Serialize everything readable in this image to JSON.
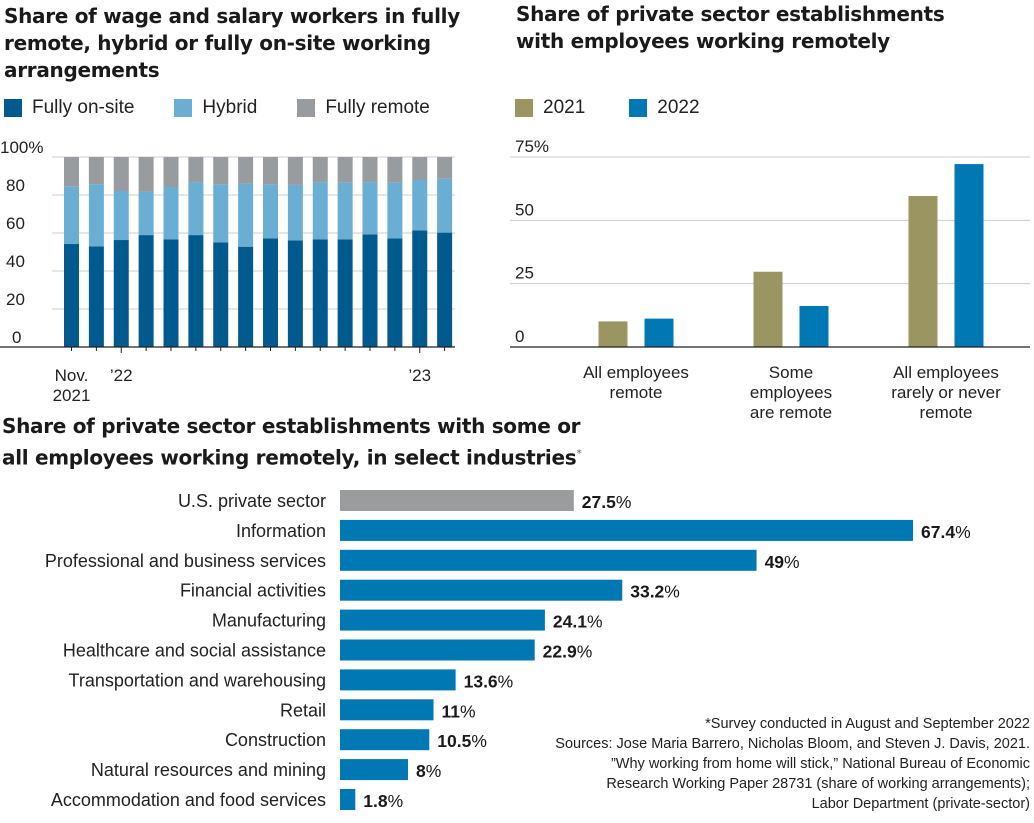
{
  "colors": {
    "onsite": "#005a8e",
    "hybrid": "#6aaed4",
    "remote": "#999c9e",
    "y2021": "#9b9562",
    "y2022": "#0078b4",
    "us_private": "#9a9c9e",
    "industry": "#0078b4",
    "grid": "#cccccc",
    "axis": "#222222"
  },
  "chart_data": [
    {
      "id": "arrangements",
      "type": "bar",
      "stacked": true,
      "title": "Share of wage and salary workers in fully remote, hybrid or fully on-site working arrangements",
      "legend": [
        "Fully on-site",
        "Hybrid",
        "Fully remote"
      ],
      "legend_position": "top-left",
      "ylim": [
        0,
        100
      ],
      "yticks": [
        0,
        20,
        40,
        60,
        80,
        100
      ],
      "ytick_labels": [
        "0",
        "20",
        "40",
        "60",
        "80",
        "100%"
      ],
      "grid": true,
      "x_labels": [
        {
          "index": 0,
          "text": "Nov.\n2021",
          "lines": [
            "Nov.",
            "2021"
          ]
        },
        {
          "index": 2,
          "text": "'22",
          "lines": [
            "’22"
          ]
        },
        {
          "index": 14,
          "text": "'23",
          "lines": [
            "’23"
          ]
        }
      ],
      "categories": [
        "Nov 2021",
        "Dec 2021",
        "Jan 2022",
        "Feb 2022",
        "Mar 2022",
        "Apr 2022",
        "May 2022",
        "Jun 2022",
        "Jul 2022",
        "Aug 2022",
        "Sep 2022",
        "Oct 2022",
        "Nov 2022",
        "Dec 2022",
        "Jan 2023",
        "Feb 2023"
      ],
      "series": [
        {
          "name": "Fully on-site",
          "values": [
            54.2,
            53.0,
            56.3,
            58.9,
            56.7,
            58.9,
            55.1,
            52.8,
            57.2,
            56.1,
            56.7,
            56.7,
            59.3,
            57.2,
            61.4,
            60.2
          ]
        },
        {
          "name": "Hybrid",
          "values": [
            30.4,
            32.6,
            25.8,
            22.9,
            27.5,
            27.9,
            30.5,
            33.2,
            28.4,
            29.2,
            30.1,
            29.8,
            27.5,
            29.3,
            26.5,
            28.4
          ]
        },
        {
          "name": "Fully remote",
          "values": [
            15.4,
            14.4,
            17.9,
            18.2,
            15.8,
            13.2,
            14.4,
            14.0,
            14.4,
            14.7,
            13.2,
            13.5,
            13.2,
            13.5,
            12.1,
            11.4
          ]
        }
      ]
    },
    {
      "id": "establishments",
      "type": "bar",
      "title": "Share of private sector establishments with employees working remotely",
      "legend": [
        "2021",
        "2022"
      ],
      "legend_position": "top-left",
      "ylim": [
        0,
        75
      ],
      "yticks": [
        0,
        25,
        50,
        75
      ],
      "ytick_labels": [
        "0",
        "25",
        "50",
        "75%"
      ],
      "grid": true,
      "categories": [
        {
          "label": "All employees remote",
          "lines": [
            "All employees",
            "remote"
          ]
        },
        {
          "label": "Some employees are remote",
          "lines": [
            "Some",
            "employees",
            "are remote"
          ]
        },
        {
          "label": "All employees rarely or never remote",
          "lines": [
            "All employees",
            "rarely or never",
            "remote"
          ]
        }
      ],
      "series": [
        {
          "name": "2021",
          "values": [
            10.1,
            29.7,
            59.6
          ]
        },
        {
          "name": "2022",
          "values": [
            11.2,
            16.2,
            72.2
          ]
        }
      ]
    },
    {
      "id": "industries",
      "type": "bar",
      "orientation": "horizontal",
      "title": "Share of private sector establishments with some or all employees working remotely, in select industries",
      "title_mark": "*",
      "xlim": [
        0,
        70
      ],
      "grid": false,
      "categories": [
        "U.S. private sector",
        "Information",
        "Professional and business services",
        "Financial activities",
        "Manufacturing",
        "Healthcare and social assistance",
        "Transportation and warehousing",
        "Retail",
        "Construction",
        "Natural resources and mining",
        "Accommodation and food services"
      ],
      "values": [
        27.5,
        67.4,
        49,
        33.2,
        24.1,
        22.9,
        13.6,
        11,
        10.5,
        8,
        1.8
      ],
      "value_labels": [
        "27.5%",
        "67.4%",
        "49%",
        "33.2%",
        "24.1%",
        "22.9%",
        "13.6%",
        "11%",
        "10.5%",
        "8%",
        "1.8%"
      ],
      "highlight": [
        0
      ]
    }
  ],
  "notes": [
    "*Survey conducted in August and September 2022",
    "Sources: Jose Maria Barrero, Nicholas Bloom, and Steven J. Davis, 2021.",
    "”Why working from home will stick,” National Bureau of Economic",
    "Research Working Paper 28731 (share of working arrangements);",
    "Labor Department (private-sector)"
  ]
}
